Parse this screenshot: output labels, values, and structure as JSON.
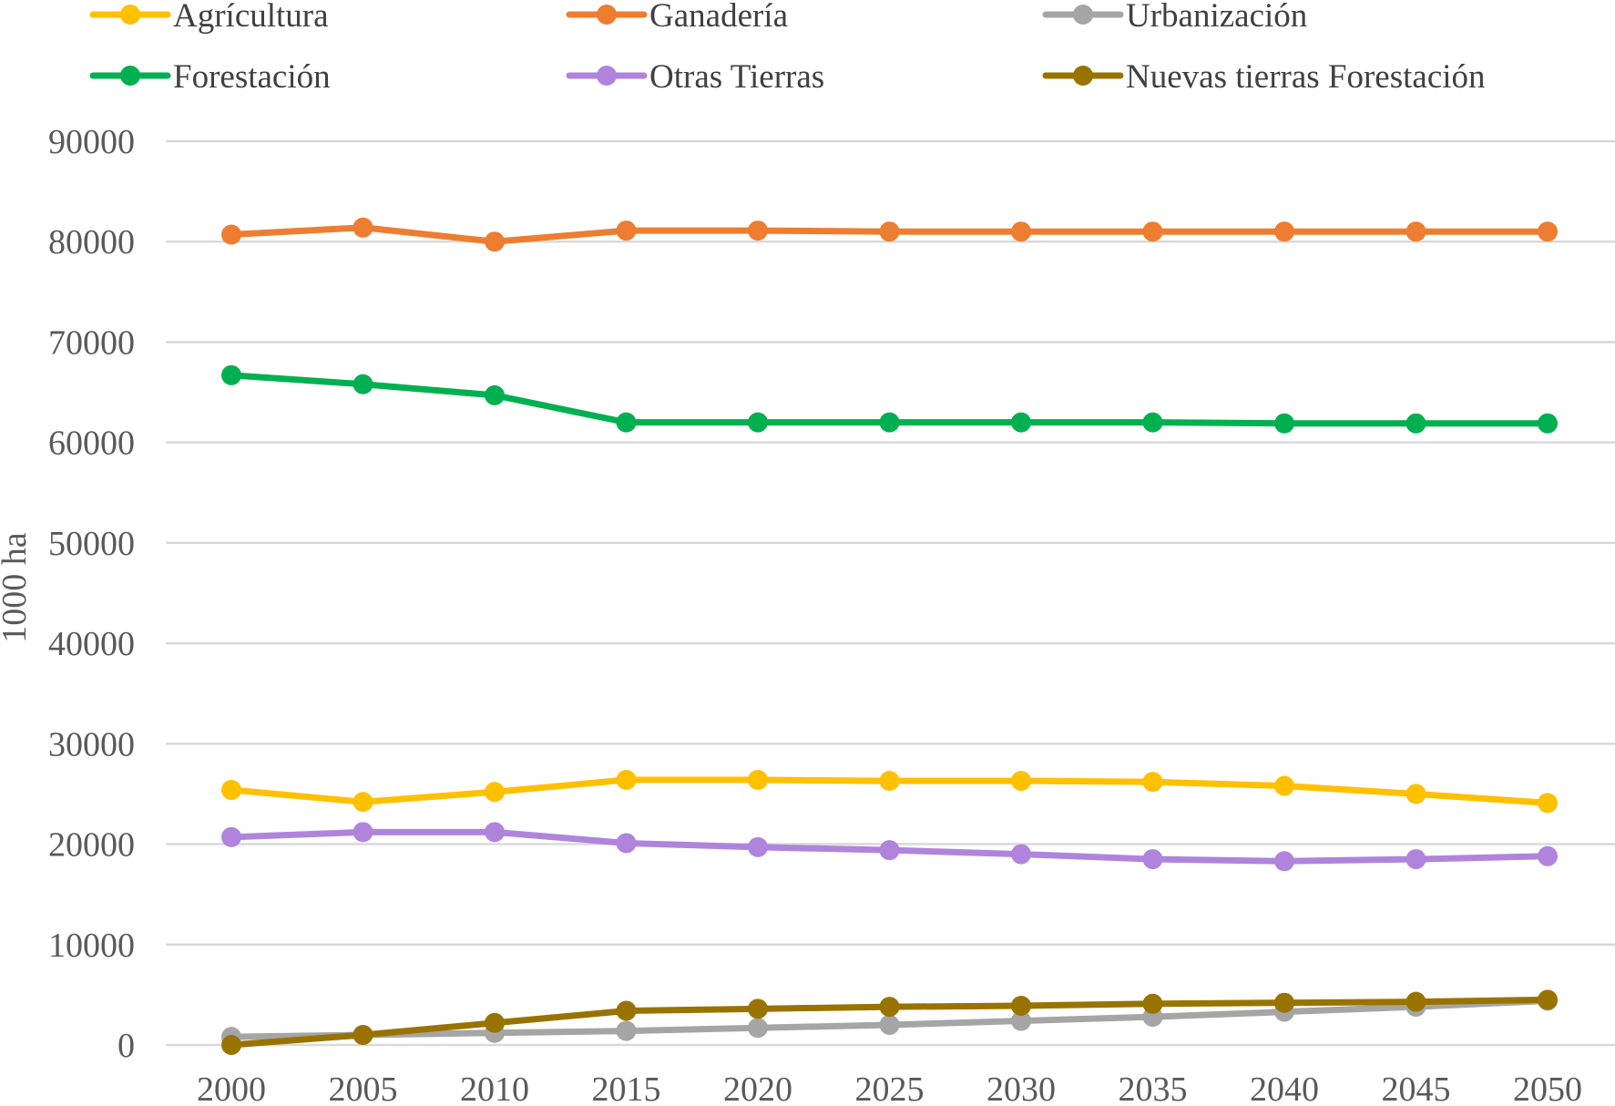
{
  "chart_data": {
    "type": "line",
    "title": "",
    "xlabel": "",
    "ylabel": "1000 ha",
    "ylim": [
      0,
      90000
    ],
    "yticks": [
      0,
      10000,
      20000,
      30000,
      40000,
      50000,
      60000,
      70000,
      80000,
      90000
    ],
    "grid": true,
    "legend_position": "top",
    "categories": [
      "2000",
      "2005",
      "2010",
      "2015",
      "2020",
      "2025",
      "2030",
      "2035",
      "2040",
      "2045",
      "2050"
    ],
    "series": [
      {
        "name": "Agrícultura",
        "color": "#FFC000",
        "values": [
          25400,
          24200,
          25200,
          26400,
          26400,
          26300,
          26300,
          26200,
          25800,
          25000,
          24100
        ]
      },
      {
        "name": "Ganadería",
        "color": "#ED7D31",
        "values": [
          80700,
          81400,
          80000,
          81100,
          81100,
          81000,
          81000,
          81000,
          81000,
          81000,
          81000
        ]
      },
      {
        "name": "Urbanización",
        "color": "#A5A5A5",
        "values": [
          800,
          1000,
          1200,
          1400,
          1700,
          2000,
          2400,
          2800,
          3300,
          3800,
          4400
        ]
      },
      {
        "name": "Forestación",
        "color": "#00B050",
        "values": [
          66700,
          65800,
          64700,
          62000,
          62000,
          62000,
          62000,
          62000,
          61900,
          61900,
          61900
        ]
      },
      {
        "name": "Otras Tierras",
        "color": "#B084DC",
        "values": [
          20700,
          21200,
          21200,
          20100,
          19700,
          19400,
          19000,
          18500,
          18300,
          18500,
          18800
        ]
      },
      {
        "name": "Nuevas tierras Forestación",
        "color": "#997300",
        "values": [
          0,
          1000,
          2200,
          3400,
          3600,
          3800,
          3900,
          4100,
          4200,
          4300,
          4500
        ]
      }
    ]
  }
}
